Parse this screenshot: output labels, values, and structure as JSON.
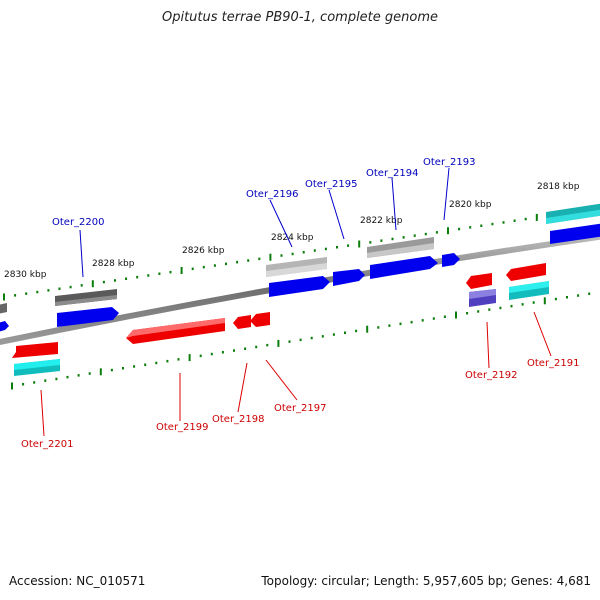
{
  "title": "Opitutus terrae PB90-1, complete genome",
  "footer": {
    "accession": "Accession: NC_010571",
    "stats": "Topology: circular; Length: 5,957,605 bp; Genes: 4,681"
  },
  "colors": {
    "forward_gene": "#0000ff",
    "reverse_gene": "#ff0000",
    "rna_cyan": "#00e5e5",
    "pseudo_gray": "#9a9a9a",
    "dark_gray": "#555555",
    "lavender": "#6a5acd",
    "tick_green": "#007a00",
    "backbone": "#777777"
  },
  "scale": {
    "labels": [
      "2830 kbp",
      "2828 kbp",
      "2826 kbp",
      "2824 kbp",
      "2822 kbp",
      "2820 kbp",
      "2818 kbp"
    ]
  },
  "forward_labels": [
    "Oter_2200",
    "Oter_2196",
    "Oter_2195",
    "Oter_2194",
    "Oter_2193"
  ],
  "reverse_labels": [
    "Oter_2201",
    "Oter_2199",
    "Oter_2198",
    "Oter_2197",
    "Oter_2192",
    "Oter_2191"
  ]
}
